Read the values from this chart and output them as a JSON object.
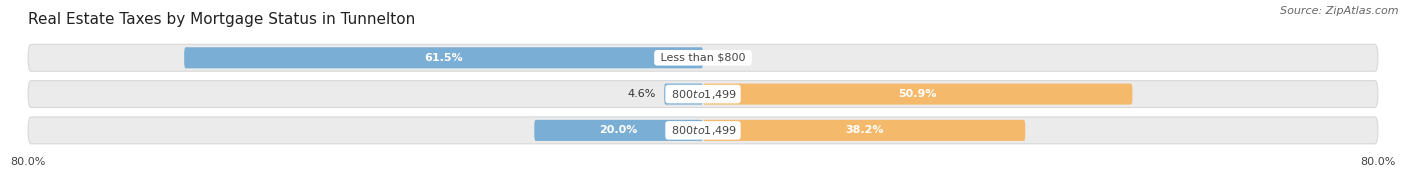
{
  "title": "Real Estate Taxes by Mortgage Status in Tunnelton",
  "source": "Source: ZipAtlas.com",
  "rows": [
    {
      "label": "Less than $800",
      "without_mortgage": 61.5,
      "with_mortgage": 0.0
    },
    {
      "label": "$800 to $1,499",
      "without_mortgage": 4.6,
      "with_mortgage": 50.9
    },
    {
      "label": "$800 to $1,499",
      "without_mortgage": 20.0,
      "with_mortgage": 38.2
    }
  ],
  "x_min": -80.0,
  "x_max": 80.0,
  "color_without": "#7aaed4",
  "color_with": "#f5b96b",
  "bar_height": 0.58,
  "background_color": "#ffffff",
  "row_bg_color": "#ebebeb",
  "row_border_color": "#d8d8d8",
  "title_fontsize": 11,
  "source_fontsize": 8,
  "label_fontsize": 8,
  "tick_fontsize": 8,
  "legend_fontsize": 9
}
